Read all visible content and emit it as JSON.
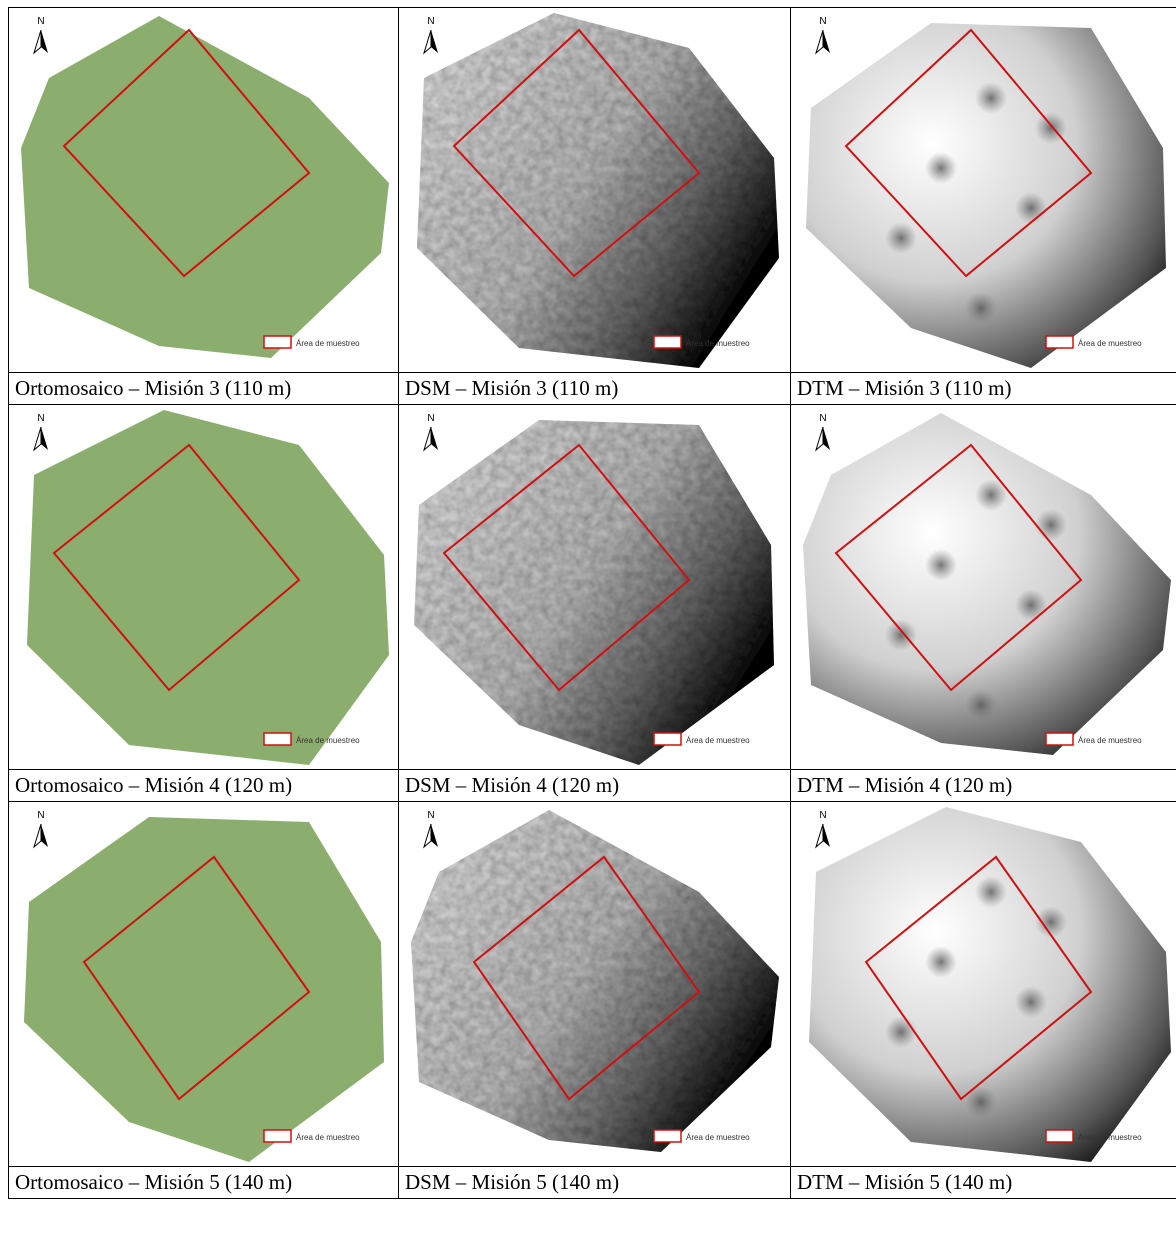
{
  "table": {
    "rows": [
      {
        "cells": [
          {
            "map": {
              "north": "N",
              "legend": "Área de muestreo"
            },
            "caption": "Ortomosaico – Misión 3 (110 m)"
          },
          {
            "map": {
              "north": "N",
              "legend": "Área de muestreo"
            },
            "caption": "DSM – Misión 3 (110 m)"
          },
          {
            "map": {
              "north": "N",
              "legend": "Área de muestreo"
            },
            "caption": "DTM – Misión 3 (110 m)"
          }
        ]
      },
      {
        "cells": [
          {
            "map": {
              "north": "N",
              "legend": "Área de muestreo"
            },
            "caption": "Ortomosaico – Misión 4 (120 m)"
          },
          {
            "map": {
              "north": "N",
              "legend": "Área de muestreo"
            },
            "caption": "DSM – Misión 4 (120 m)"
          },
          {
            "map": {
              "north": "N",
              "legend": "Área de muestreo"
            },
            "caption": "DTM – Misión 4 (120 m)"
          }
        ]
      },
      {
        "cells": [
          {
            "map": {
              "north": "N",
              "legend": "Área de muestreo"
            },
            "caption": "Ortomosaico – Misión 5 (140 m)"
          },
          {
            "map": {
              "north": "N",
              "legend": "Área de muestreo"
            },
            "caption": "DSM – Misión 5 (140 m)"
          },
          {
            "map": {
              "north": "N",
              "legend": "Área de muestreo"
            },
            "caption": "DTM – Misión 5 (140 m)"
          }
        ]
      }
    ]
  }
}
